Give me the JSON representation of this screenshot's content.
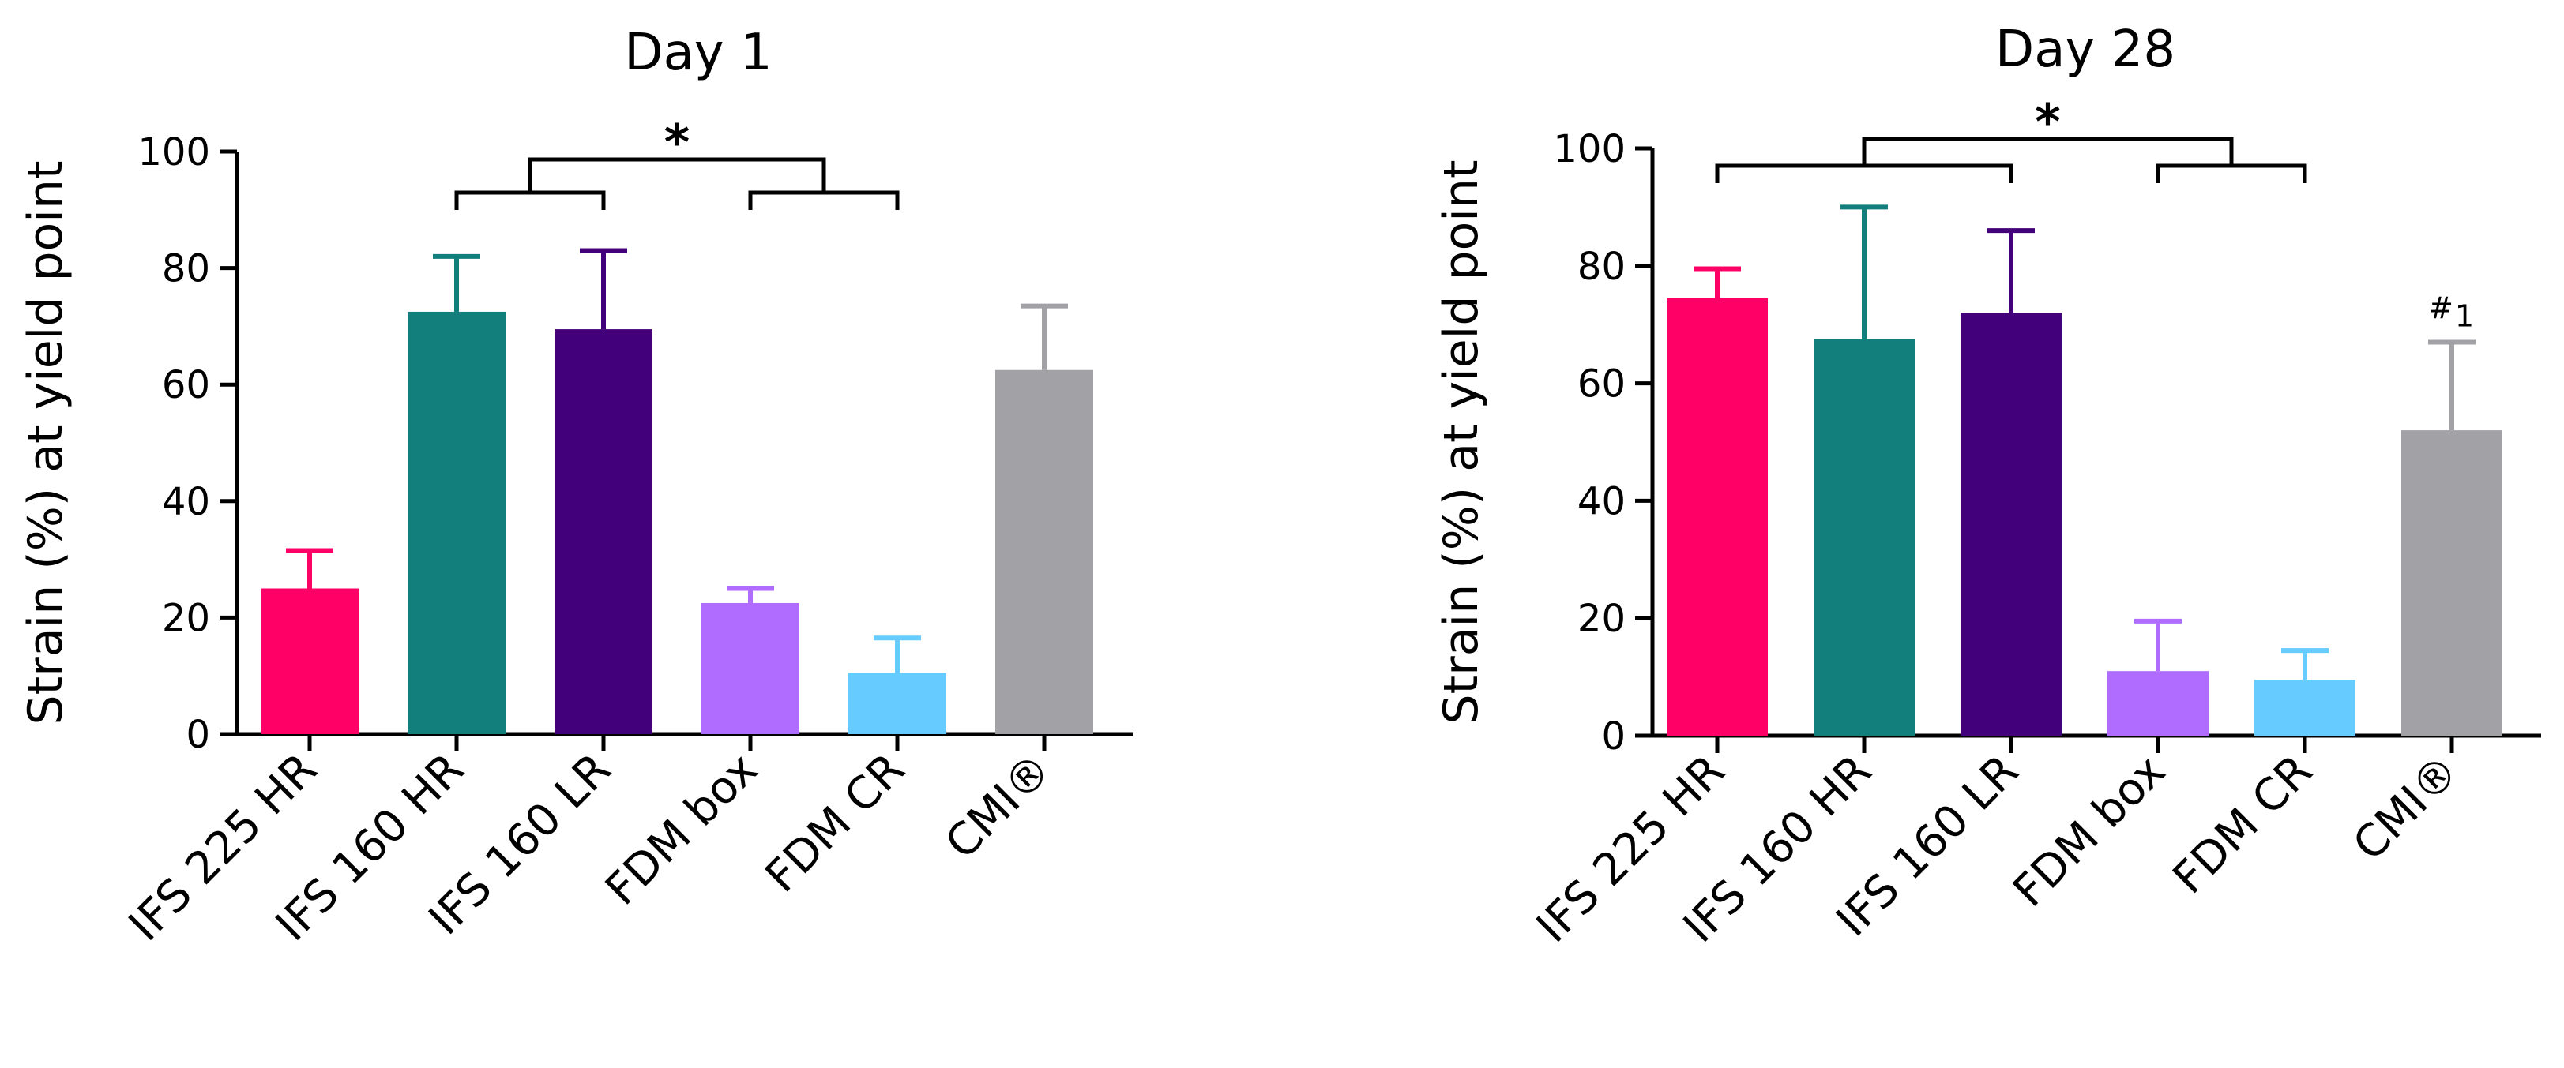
{
  "chart_data": [
    {
      "type": "bar",
      "title": "Day 1",
      "xlabel": "",
      "ylabel": "Strain (%) at yield point",
      "ylim": [
        0,
        100
      ],
      "yticks": [
        0,
        20,
        40,
        60,
        80,
        100
      ],
      "categories": [
        "IFS 225 HR",
        "IFS 160 HR",
        "IFS 160 LR",
        "FDM box",
        "FDM CR",
        "CMI®"
      ],
      "values": [
        25,
        72.5,
        69.5,
        22.5,
        10.5,
        62.5
      ],
      "errors": [
        6.5,
        9.5,
        13.5,
        2.5,
        6,
        11
      ],
      "colors": [
        "#ff0066",
        "#127f7c",
        "#42007a",
        "#b06cff",
        "#66ccff",
        "#a1a1a6"
      ],
      "significance": [
        {
          "label": "*",
          "left_group": [
            1,
            2
          ],
          "right_group": [
            3,
            4
          ]
        }
      ],
      "annotations": []
    },
    {
      "type": "bar",
      "title": "Day 28",
      "xlabel": "",
      "ylabel": "Strain (%) at yield point",
      "ylim": [
        0,
        100
      ],
      "yticks": [
        0,
        20,
        40,
        60,
        80,
        100
      ],
      "categories": [
        "IFS 225 HR",
        "IFS 160 HR",
        "IFS 160 LR",
        "FDM box",
        "FDM CR",
        "CMI®"
      ],
      "values": [
        74.5,
        67.5,
        72,
        11,
        9.5,
        52
      ],
      "errors": [
        5,
        22.5,
        14,
        8.5,
        5,
        15
      ],
      "colors": [
        "#ff0066",
        "#127f7c",
        "#42007a",
        "#b06cff",
        "#66ccff",
        "#a1a1a6"
      ],
      "significance": [
        {
          "label": "*",
          "left_group": [
            0,
            2
          ],
          "right_group": [
            3,
            4
          ]
        }
      ],
      "annotations": [
        {
          "category": 5,
          "text": "#",
          "subscript": "1"
        }
      ]
    }
  ]
}
